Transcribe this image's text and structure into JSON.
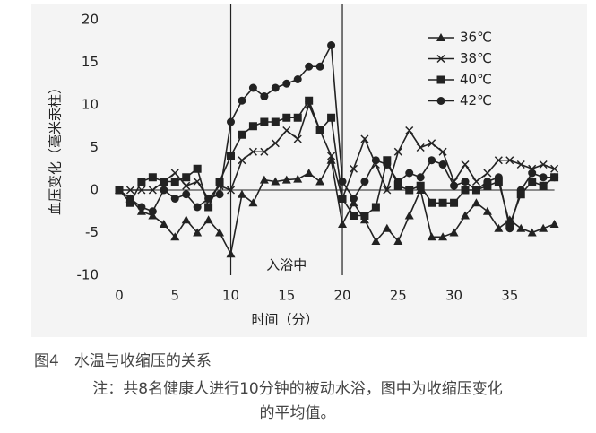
{
  "chart_data": {
    "type": "line",
    "x_label": "时间（分）",
    "y_label": "血压变化（毫米汞柱）",
    "annotation": "入浴中",
    "x": [
      0,
      1,
      2,
      3,
      4,
      5,
      6,
      7,
      8,
      9,
      10,
      11,
      12,
      13,
      14,
      15,
      16,
      17,
      18,
      19,
      20,
      21,
      22,
      23,
      24,
      25,
      26,
      27,
      28,
      29,
      30,
      31,
      32,
      33,
      34,
      35,
      36,
      37,
      38,
      39
    ],
    "series": [
      {
        "name": "36℃",
        "color": "#222222",
        "marker": "triangle",
        "values": [
          0,
          -1,
          -2.5,
          -3,
          -4,
          -5.5,
          -3.5,
          -5,
          -3.5,
          -5,
          -7.5,
          -0.5,
          -1.5,
          1.2,
          1,
          1.2,
          1.3,
          2,
          1,
          3.5,
          -4,
          -1.5,
          -3.5,
          -6,
          -4.5,
          -6,
          -3,
          0,
          -5.5,
          -5.5,
          -5,
          -3,
          -1.5,
          -2.5,
          -4.5,
          -3.5,
          -4.5,
          -5,
          -4.5,
          -4
        ]
      },
      {
        "name": "38℃",
        "color": "#222222",
        "marker": "x",
        "values": [
          0,
          0,
          0,
          0,
          1,
          2,
          0.5,
          1,
          -1,
          0.5,
          0,
          3.5,
          4.5,
          4.5,
          5.5,
          7,
          6,
          10,
          7,
          4,
          -1,
          2.5,
          6,
          3,
          0,
          4.5,
          7,
          5,
          5.5,
          4.5,
          1,
          3,
          1,
          2,
          3.5,
          3.5,
          3,
          2.5,
          3,
          2.5
        ]
      },
      {
        "name": "40℃",
        "color": "#222222",
        "marker": "square",
        "values": [
          0,
          -1.5,
          1,
          1.5,
          1,
          1,
          1.5,
          2.5,
          -2,
          1,
          4,
          6.5,
          7.5,
          8,
          8,
          8.5,
          8.5,
          10.5,
          7,
          8.5,
          -1,
          -3,
          -3,
          -2,
          3.5,
          0.5,
          0,
          0.5,
          -1.5,
          -1.5,
          -1.5,
          0,
          0,
          0.5,
          1,
          -4,
          -0.5,
          1,
          0.5,
          1.5
        ]
      },
      {
        "name": "42℃",
        "color": "#222222",
        "marker": "circle",
        "values": [
          0,
          -1,
          -2,
          -2.5,
          0,
          -1,
          -0.5,
          -2,
          -1,
          -0.5,
          8,
          10.5,
          12,
          11,
          12,
          12.5,
          13,
          14.5,
          14.5,
          17,
          1,
          -1,
          1,
          3.5,
          3,
          1,
          2,
          1.5,
          3.5,
          3,
          0.5,
          1,
          0,
          1,
          1.5,
          -4.5,
          0,
          2,
          1.5,
          1.5
        ]
      }
    ],
    "xlim": [
      0,
      39
    ],
    "xticks": [
      0,
      5,
      10,
      15,
      20,
      25,
      30,
      35
    ],
    "ylim": [
      -10,
      20
    ],
    "yticks": [
      -10,
      -5,
      0,
      5,
      10,
      15,
      20
    ],
    "vlines": [
      10,
      20
    ],
    "legend": "upper right"
  },
  "caption": {
    "figure": "图4　水温与收缩压的关系",
    "note": [
      "注：共8名健康人进行10分钟的被动水浴，图中为收缩压变化",
      "的平均值。"
    ]
  }
}
